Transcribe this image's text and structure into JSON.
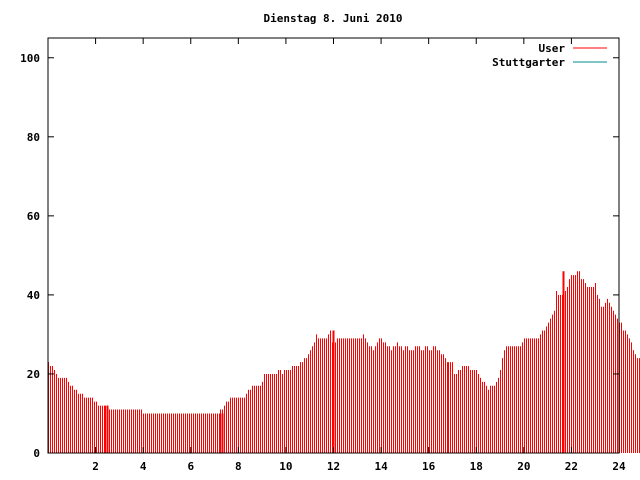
{
  "chart_data": {
    "type": "bar",
    "title": "Dienstag 8. Juni 2010",
    "xlabel": "",
    "ylabel": "",
    "xlim": [
      0,
      24
    ],
    "ylim": [
      0,
      105
    ],
    "xticks": [
      2,
      4,
      6,
      8,
      10,
      12,
      14,
      16,
      18,
      20,
      22,
      24
    ],
    "yticks": [
      0,
      20,
      40,
      60,
      80,
      100
    ],
    "xtick_labels": [
      "2",
      "4",
      "6",
      "8",
      "10",
      "12",
      "14",
      "16",
      "18",
      "20",
      "22",
      "24"
    ],
    "ytick_labels": [
      "0",
      "20",
      "40",
      "60",
      "80",
      "100"
    ],
    "grid": false,
    "legend_position": "top-right",
    "x_step_hours": 0.0833333,
    "series": [
      {
        "name": "User",
        "color": "#ff0000",
        "values": [
          23,
          22,
          22,
          21,
          20,
          19,
          19,
          19,
          19,
          19,
          18,
          17,
          17,
          16,
          16,
          15,
          15,
          15,
          14,
          14,
          14,
          14,
          14,
          13,
          13,
          12,
          12,
          12,
          12,
          12,
          12,
          11,
          11,
          11,
          11,
          11,
          11,
          11,
          11,
          11,
          11,
          11,
          11,
          11,
          11,
          11,
          11,
          11,
          10,
          10,
          10,
          10,
          10,
          10,
          10,
          10,
          10,
          10,
          10,
          10,
          10,
          10,
          10,
          10,
          10,
          10,
          10,
          10,
          10,
          10,
          10,
          10,
          10,
          10,
          10,
          10,
          10,
          10,
          10,
          10,
          10,
          10,
          10,
          10,
          10,
          10,
          10,
          11,
          11,
          12,
          13,
          13,
          14,
          14,
          14,
          14,
          14,
          14,
          14,
          14,
          15,
          16,
          16,
          17,
          17,
          17,
          17,
          17,
          18,
          20,
          20,
          20,
          20,
          20,
          20,
          20,
          21,
          21,
          20,
          21,
          21,
          21,
          21,
          22,
          22,
          22,
          22,
          23,
          23,
          24,
          24,
          25,
          26,
          27,
          28,
          30,
          29,
          29,
          29,
          29,
          29,
          30,
          31,
          28,
          29,
          28,
          29,
          29,
          29,
          29,
          29,
          29,
          29,
          29,
          29,
          29,
          29,
          29,
          29,
          30,
          29,
          28,
          27,
          27,
          26,
          27,
          28,
          29,
          29,
          28,
          28,
          27,
          27,
          26,
          27,
          27,
          28,
          27,
          27,
          26,
          27,
          27,
          26,
          26,
          26,
          27,
          27,
          27,
          26,
          26,
          27,
          27,
          26,
          26,
          27,
          27,
          26,
          26,
          25,
          25,
          24,
          23,
          23,
          23,
          23,
          20,
          20,
          21,
          21,
          22,
          22,
          22,
          22,
          21,
          21,
          21,
          21,
          20,
          19,
          18,
          18,
          17,
          16,
          17,
          17,
          17,
          18,
          19,
          21,
          24,
          26,
          27,
          27,
          27,
          27,
          27,
          27,
          27,
          27,
          28,
          29,
          29,
          29,
          29,
          29,
          29,
          29,
          29,
          30,
          31,
          31,
          32,
          33,
          34,
          35,
          36,
          41,
          40,
          40,
          40,
          40,
          41,
          42,
          44,
          45,
          45,
          45,
          46,
          46,
          44,
          44,
          43,
          42,
          42,
          42,
          42,
          43,
          40,
          39,
          37,
          37,
          38,
          39,
          38,
          37,
          36,
          35,
          34,
          33,
          33,
          31,
          31,
          30,
          29,
          28,
          26,
          25,
          24,
          24
        ],
        "peaks": [
          [
            2.5,
            12
          ],
          [
            7.333,
            10
          ],
          [
            12.0,
            31
          ],
          [
            21.667,
            46
          ]
        ]
      },
      {
        "name": "Stuttgarter",
        "color": "#008b8b",
        "values": []
      }
    ]
  }
}
